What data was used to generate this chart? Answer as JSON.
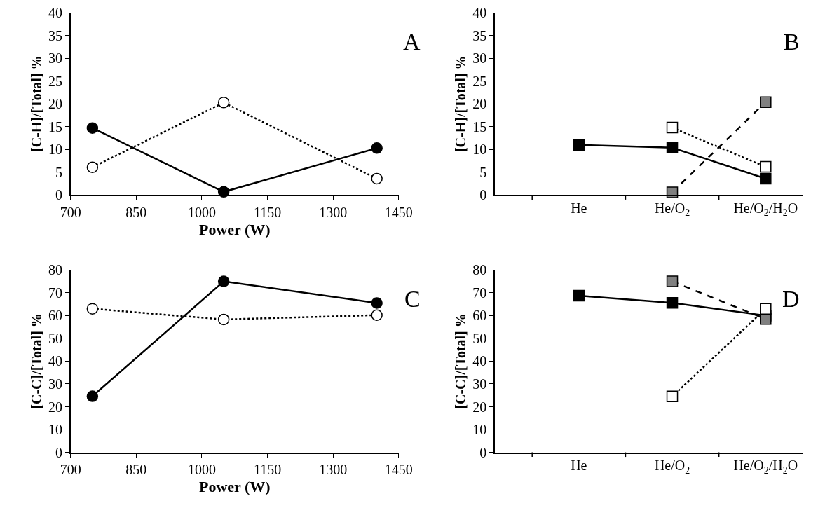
{
  "chart_data": [
    {
      "type": "line",
      "x": [
        750,
        1050,
        1400
      ],
      "xlim": [
        700,
        1450
      ],
      "xticks": [
        700,
        850,
        1000,
        1150,
        1300,
        1450
      ],
      "ylim": [
        0,
        40
      ],
      "yticks": [
        0,
        5,
        10,
        15,
        20,
        25,
        30,
        35,
        40
      ],
      "xlabel": "Power (W)",
      "ylabel": "[C-H]/[Total] %",
      "annotations": [
        "A"
      ],
      "series": [
        {
          "color": "#000000",
          "values": [
            14.7,
            0.7,
            10.3
          ],
          "marker": "circle",
          "line_style": "solid"
        },
        {
          "color": "#ffffff",
          "values": [
            6.1,
            20.3,
            3.6
          ],
          "marker": "circle",
          "line_style": "dotted"
        }
      ]
    },
    {
      "type": "line",
      "categories": [
        "He",
        "He/O$_{2}$",
        "He/O$_{2}$/H$_{2}$O"
      ],
      "ylim": [
        0,
        40
      ],
      "yticks": [
        0,
        5,
        10,
        15,
        20,
        25,
        30,
        35,
        40
      ],
      "ylabel": "[C-H]/[Total] %",
      "annotations": [
        "B"
      ],
      "series": [
        {
          "color": "#000000",
          "values": [
            11.0,
            10.4,
            3.6
          ],
          "marker": "square",
          "line_style": "solid"
        },
        {
          "color": "#ffffff",
          "values": [
            null,
            14.8,
            6.2
          ],
          "marker": "square",
          "line_style": "dotted"
        },
        {
          "color": "#808080",
          "values": [
            null,
            0.6,
            20.4
          ],
          "marker": "square",
          "line_style": "dashed"
        }
      ]
    },
    {
      "type": "line",
      "x": [
        750,
        1050,
        1400
      ],
      "xlim": [
        700,
        1450
      ],
      "xticks": [
        700,
        850,
        1000,
        1150,
        1300,
        1450
      ],
      "ylim": [
        0,
        80
      ],
      "yticks": [
        0,
        10,
        20,
        30,
        40,
        50,
        60,
        70,
        80
      ],
      "xlabel": "Power (W)",
      "ylabel": "[C-C]/[Total] %",
      "annotations": [
        "C"
      ],
      "series": [
        {
          "color": "#000000",
          "values": [
            24.6,
            75.0,
            65.5
          ],
          "marker": "circle",
          "line_style": "solid"
        },
        {
          "color": "#ffffff",
          "values": [
            63.0,
            58.3,
            60.2
          ],
          "marker": "circle",
          "line_style": "dotted"
        }
      ]
    },
    {
      "type": "line",
      "categories": [
        "He",
        "He/O$_{2}$",
        "He/O$_{2}$/H$_{2}$O"
      ],
      "ylim": [
        0,
        80
      ],
      "yticks": [
        0,
        10,
        20,
        30,
        40,
        50,
        60,
        70,
        80
      ],
      "ylabel": "[C-C]/[Total] %",
      "annotations": [
        "D"
      ],
      "series": [
        {
          "color": "#000000",
          "values": [
            68.7,
            65.6,
            60.0
          ],
          "marker": "square",
          "line_style": "solid"
        },
        {
          "color": "#808080",
          "values": [
            null,
            75.0,
            58.5
          ],
          "marker": "square",
          "line_style": "dashed"
        },
        {
          "color": "#ffffff",
          "values": [
            null,
            24.5,
            63.0
          ],
          "marker": "square",
          "line_style": "dotted"
        }
      ]
    }
  ]
}
